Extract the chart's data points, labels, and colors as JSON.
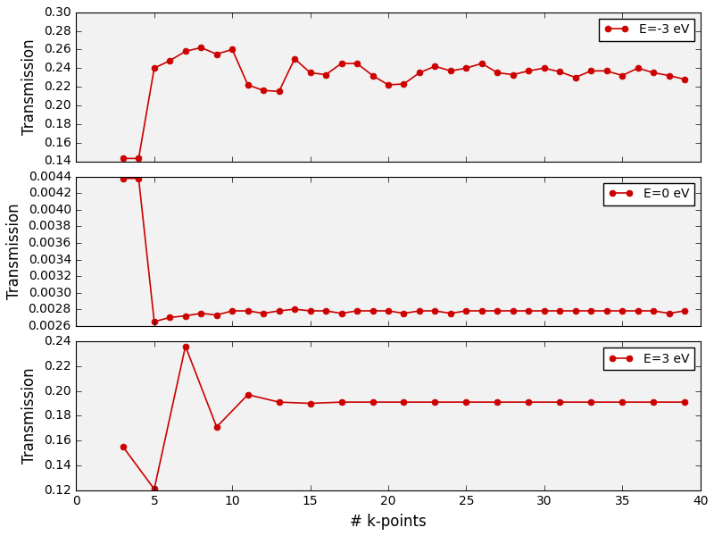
{
  "xlabel": "# k-points",
  "ylabel": "Transmission",
  "line_color": "#cc0000",
  "marker": "o",
  "markersize": 5,
  "linewidth": 1.2,
  "panel1": {
    "label": "E=-3 eV",
    "x": [
      3,
      4,
      5,
      6,
      7,
      8,
      9,
      10,
      11,
      12,
      13,
      14,
      15,
      16,
      17,
      18,
      19,
      20,
      21,
      22,
      23,
      24,
      25,
      26,
      27,
      28,
      29,
      30,
      31,
      32,
      33,
      34,
      35,
      36,
      37,
      38,
      39
    ],
    "y": [
      0.143,
      0.143,
      0.24,
      0.248,
      0.258,
      0.262,
      0.255,
      0.26,
      0.222,
      0.216,
      0.215,
      0.25,
      0.235,
      0.233,
      0.245,
      0.245,
      0.232,
      0.222,
      0.223,
      0.235,
      0.242,
      0.237,
      0.24,
      0.245,
      0.235,
      0.233,
      0.237,
      0.24,
      0.236,
      0.23,
      0.237,
      0.237,
      0.232,
      0.24,
      0.235,
      0.232,
      0.228
    ],
    "ylim": [
      0.14,
      0.3
    ],
    "yticks": [
      0.14,
      0.16,
      0.18,
      0.2,
      0.22,
      0.24,
      0.26,
      0.28,
      0.3
    ]
  },
  "panel2": {
    "label": "E=0 eV",
    "x": [
      3,
      4,
      5,
      6,
      7,
      8,
      9,
      10,
      11,
      12,
      13,
      14,
      15,
      16,
      17,
      18,
      19,
      20,
      21,
      22,
      23,
      24,
      25,
      26,
      27,
      28,
      29,
      30,
      31,
      32,
      33,
      34,
      35,
      36,
      37,
      38,
      39
    ],
    "y": [
      0.00438,
      0.00438,
      0.00265,
      0.0027,
      0.00272,
      0.00275,
      0.00273,
      0.00278,
      0.00278,
      0.00275,
      0.00278,
      0.0028,
      0.00278,
      0.00278,
      0.00275,
      0.00278,
      0.00278,
      0.00278,
      0.00275,
      0.00278,
      0.00278,
      0.00275,
      0.00278,
      0.00278,
      0.00278,
      0.00278,
      0.00278,
      0.00278,
      0.00278,
      0.00278,
      0.00278,
      0.00278,
      0.00278,
      0.00278,
      0.00278,
      0.00275,
      0.00278
    ],
    "ylim": [
      0.0026,
      0.0044
    ],
    "yticks": [
      0.0026,
      0.0028,
      0.003,
      0.0032,
      0.0034,
      0.0036,
      0.0038,
      0.004,
      0.0042,
      0.0044
    ]
  },
  "panel3": {
    "label": "E=3 eV",
    "x": [
      3,
      5,
      7,
      9,
      11,
      13,
      15,
      17,
      19,
      21,
      23,
      25,
      27,
      29,
      31,
      33,
      35,
      37,
      39
    ],
    "y": [
      0.155,
      0.121,
      0.236,
      0.171,
      0.197,
      0.191,
      0.19,
      0.191,
      0.191,
      0.191,
      0.191,
      0.191,
      0.191,
      0.191,
      0.191,
      0.191,
      0.191,
      0.191,
      0.191
    ],
    "ylim": [
      0.12,
      0.24
    ],
    "yticks": [
      0.12,
      0.14,
      0.16,
      0.18,
      0.2,
      0.22,
      0.24
    ]
  },
  "xlim": [
    0,
    40
  ],
  "xticks": [
    0,
    5,
    10,
    15,
    20,
    25,
    30,
    35,
    40
  ],
  "fig_facecolor": "#e8e8e8",
  "axes_facecolor": "#f2f2f2",
  "legend_fontsize": 10,
  "axis_fontsize": 12,
  "tick_fontsize": 10
}
